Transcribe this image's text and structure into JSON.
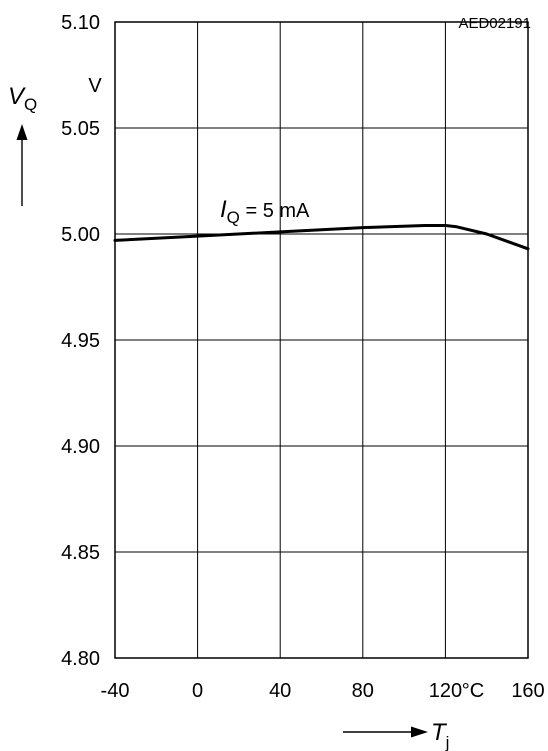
{
  "chart_data": {
    "type": "line",
    "figure_code": "AED02191",
    "y_axis": {
      "symbol_main": "V",
      "symbol_sub": "Q",
      "unit": "V",
      "range": [
        4.8,
        5.1
      ],
      "ticks": [
        4.8,
        4.85,
        4.9,
        4.95,
        5.0,
        5.05,
        5.1
      ],
      "tick_labels": [
        "4.80",
        "4.85",
        "4.90",
        "4.95",
        "5.00",
        "5.05",
        "5.10"
      ]
    },
    "x_axis": {
      "symbol_main": "T",
      "symbol_sub": "j",
      "unit": "°C",
      "range": [
        -40,
        160
      ],
      "ticks": [
        -40,
        0,
        40,
        80,
        120,
        160
      ],
      "tick_labels": [
        "-40",
        "0",
        "40",
        "80",
        "120",
        "160"
      ]
    },
    "grid": true,
    "series": [
      {
        "name": "I_Q = 5 mA",
        "label_main": "I",
        "label_sub": "Q",
        "label_rest": " = 5 mA",
        "color": "#000000",
        "x": [
          -40,
          0,
          40,
          80,
          110,
          120,
          125,
          140,
          160
        ],
        "y": [
          4.997,
          4.999,
          5.001,
          5.003,
          5.004,
          5.004,
          5.0035,
          5.0,
          4.993
        ]
      }
    ]
  }
}
